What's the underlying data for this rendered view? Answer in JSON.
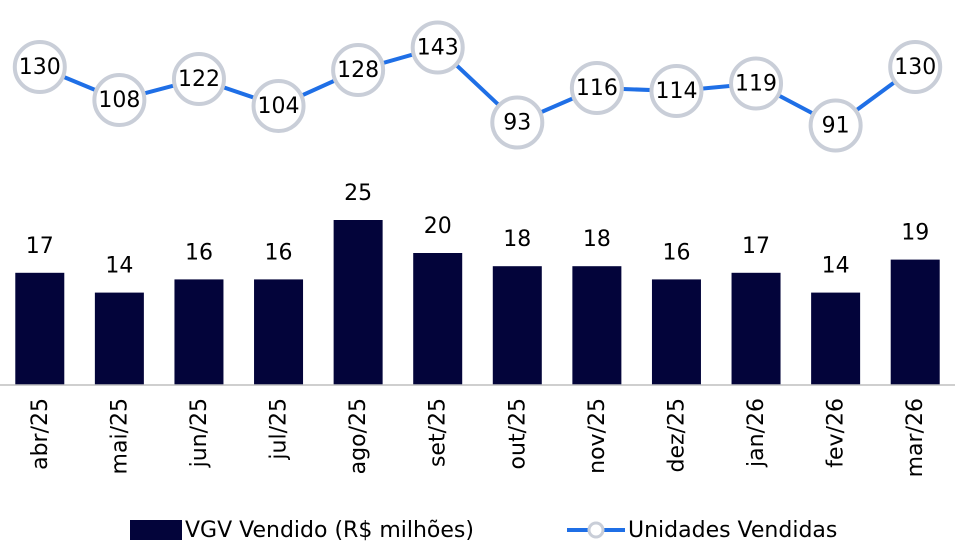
{
  "chart_data": {
    "type": "combo",
    "categories": [
      "abr/25",
      "mai/25",
      "jun/25",
      "jul/25",
      "ago/25",
      "set/25",
      "out/25",
      "nov/25",
      "dez/25",
      "jan/26",
      "fev/26",
      "mar/26"
    ],
    "series": [
      {
        "name": "VGV Vendido (R$ milhões)",
        "type": "bar",
        "color": "#03043a",
        "values": [
          17,
          14,
          16,
          16,
          25,
          20,
          18,
          18,
          16,
          17,
          14,
          19
        ]
      },
      {
        "name": "Unidades Vendidas",
        "type": "line",
        "axis": "y2",
        "color": "#1f6fe6",
        "marker_edge": "#c9ced8",
        "values": [
          130,
          108,
          122,
          104,
          128,
          143,
          93,
          116,
          114,
          119,
          91,
          130
        ]
      }
    ],
    "ylim": [
      0,
      30
    ],
    "y2lim": [
      40,
      150
    ],
    "legend": "bottom"
  }
}
